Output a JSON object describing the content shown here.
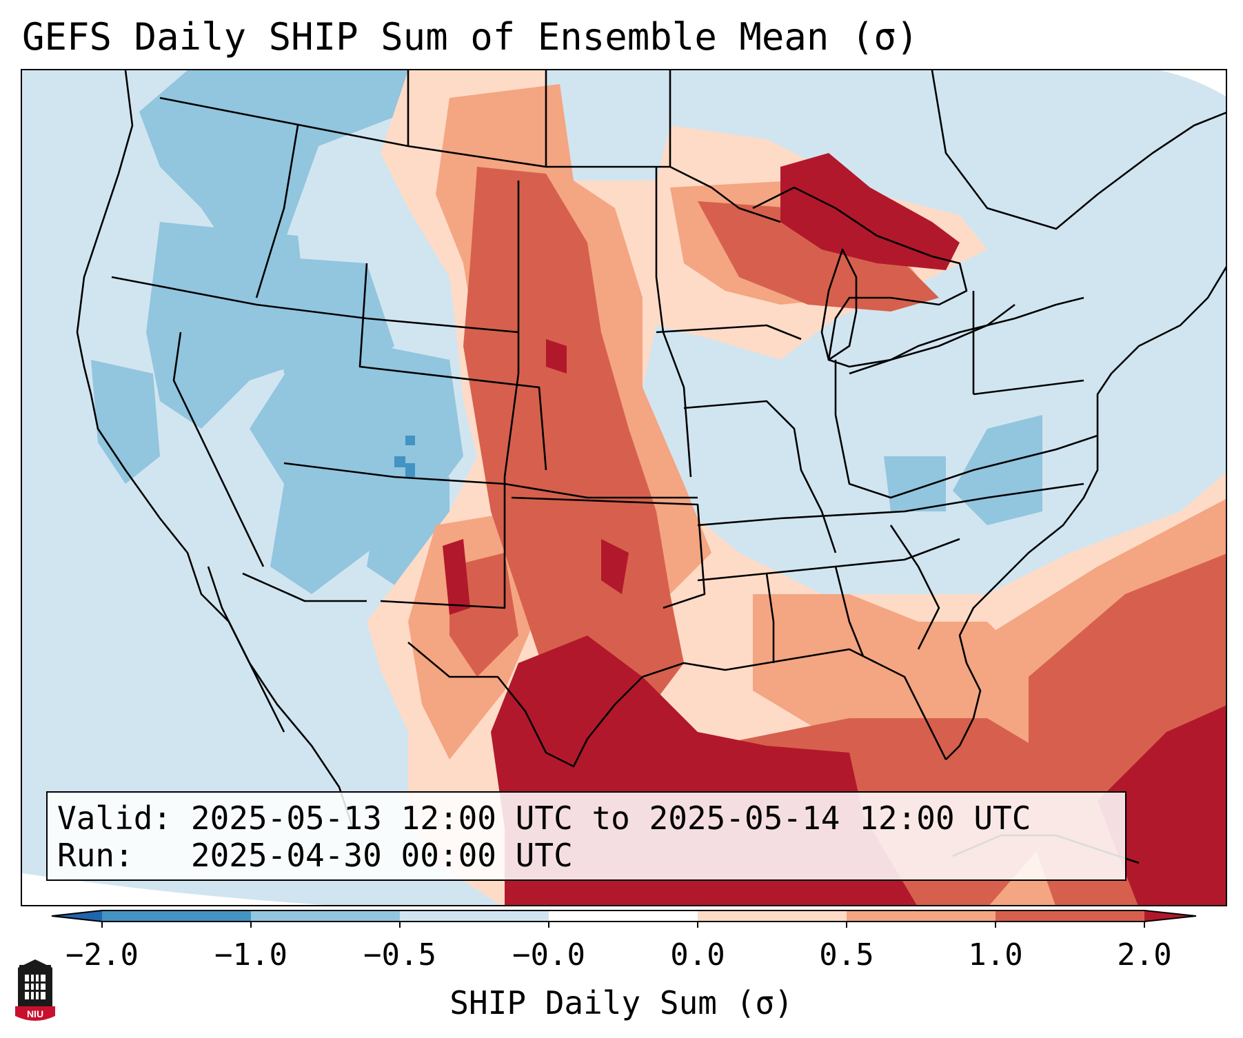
{
  "title": "GEFS Daily SHIP Sum of Ensemble Mean (σ)",
  "info": {
    "valid_label": "Valid:",
    "valid_value": "2025-05-13 12:00 UTC to 2025-05-14 12:00 UTC",
    "run_label": "Run:",
    "run_value": "2025-04-30 00:00 UTC"
  },
  "colorbar": {
    "label": "SHIP Daily Sum (σ)",
    "ticks": [
      "−2.0",
      "−1.0",
      "−0.5",
      "−0.0",
      "0.0",
      "0.5",
      "1.0",
      "2.0"
    ],
    "colors": {
      "under": "#2166ac",
      "b1": "#4393c3",
      "b2": "#92c5de",
      "b3": "#d1e5f0",
      "b4": "#fddbc7",
      "b5": "#f4a582",
      "b6": "#d6604d",
      "over": "#b2182b"
    }
  },
  "logo": {
    "text": "NIU",
    "color": "#c8102e"
  }
}
